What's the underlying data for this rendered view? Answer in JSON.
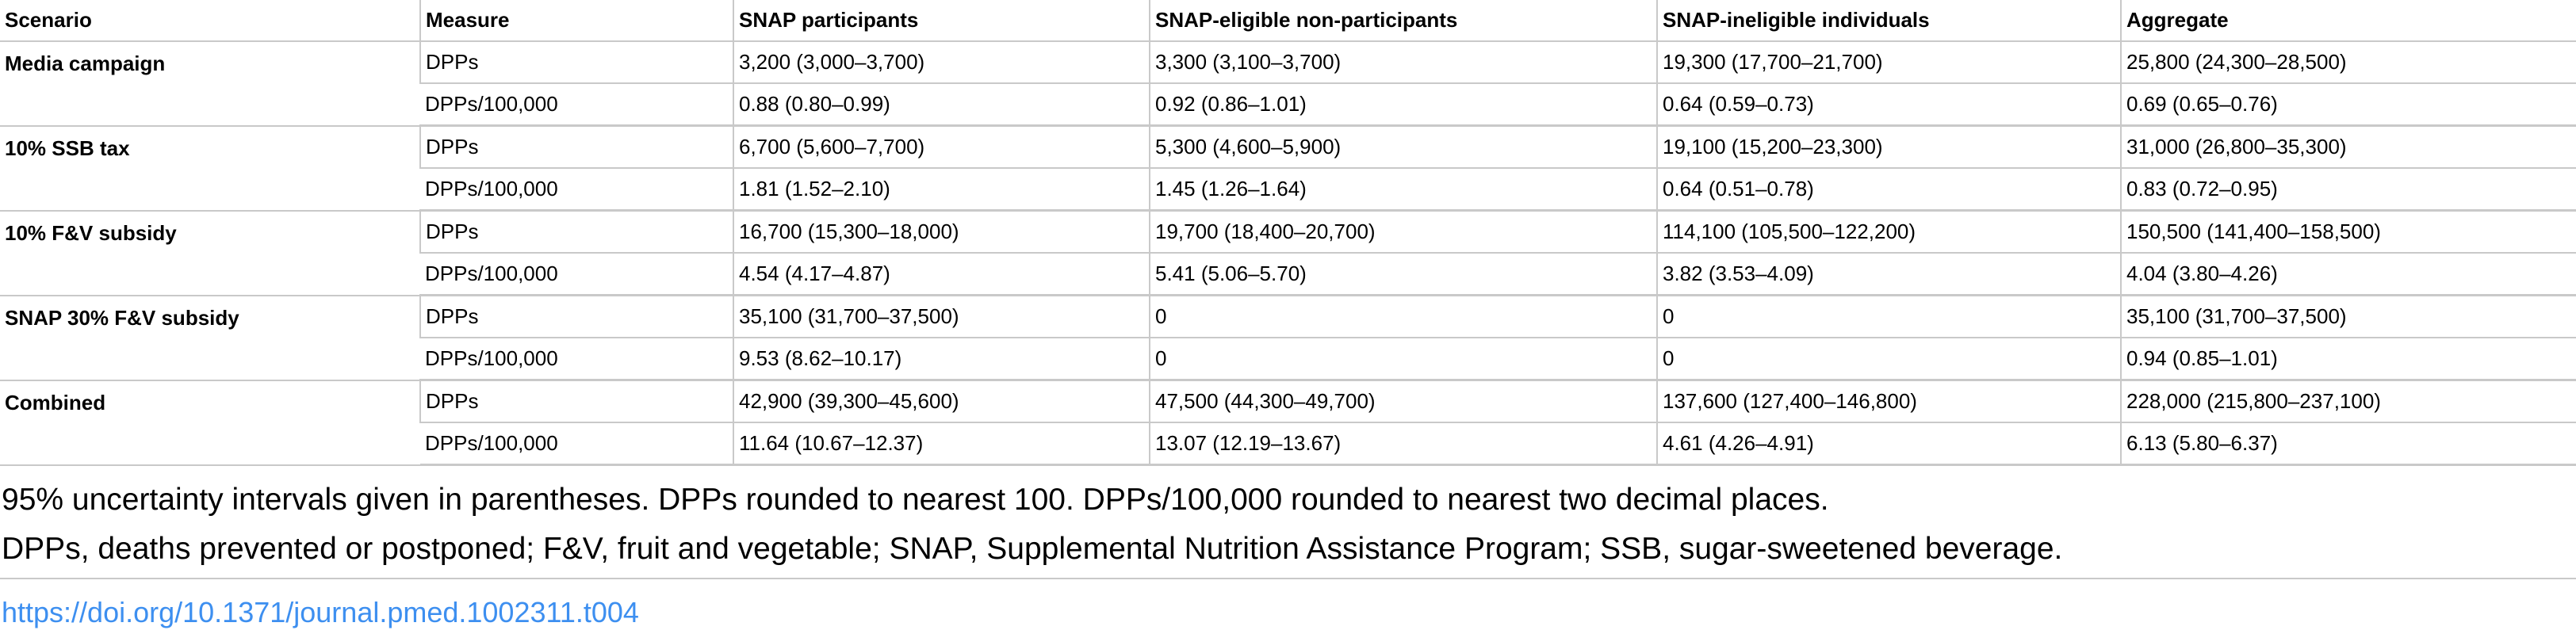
{
  "table": {
    "headers": [
      "Scenario",
      "Measure",
      "SNAP participants",
      "SNAP-eligible non-participants",
      "SNAP-ineligible individuals",
      "Aggregate"
    ],
    "groups": [
      {
        "scenario": "Media campaign",
        "rows": [
          [
            "DPPs",
            "3,200 (3,000–3,700)",
            "3,300 (3,100–3,700)",
            "19,300 (17,700–21,700)",
            "25,800 (24,300–28,500)"
          ],
          [
            "DPPs/100,000",
            "0.88 (0.80–0.99)",
            "0.92 (0.86–1.01)",
            "0.64 (0.59–0.73)",
            "0.69 (0.65–0.76)"
          ]
        ]
      },
      {
        "scenario": "10% SSB tax",
        "rows": [
          [
            "DPPs",
            "6,700 (5,600–7,700)",
            "5,300 (4,600–5,900)",
            "19,100 (15,200–23,300)",
            "31,000 (26,800–35,300)"
          ],
          [
            "DPPs/100,000",
            "1.81 (1.52–2.10)",
            "1.45 (1.26–1.64)",
            "0.64 (0.51–0.78)",
            "0.83 (0.72–0.95)"
          ]
        ]
      },
      {
        "scenario": "10% F&V subsidy",
        "rows": [
          [
            "DPPs",
            "16,700 (15,300–18,000)",
            "19,700 (18,400–20,700)",
            "114,100 (105,500–122,200)",
            "150,500 (141,400–158,500)"
          ],
          [
            "DPPs/100,000",
            "4.54 (4.17–4.87)",
            "5.41 (5.06–5.70)",
            "3.82 (3.53–4.09)",
            "4.04 (3.80–4.26)"
          ]
        ]
      },
      {
        "scenario": "SNAP 30% F&V subsidy",
        "rows": [
          [
            "DPPs",
            "35,100 (31,700–37,500)",
            "0",
            "0",
            "35,100 (31,700–37,500)"
          ],
          [
            "DPPs/100,000",
            "9.53 (8.62–10.17)",
            "0",
            "0",
            "0.94 (0.85–1.01)"
          ]
        ]
      },
      {
        "scenario": "Combined",
        "rows": [
          [
            "DPPs",
            "42,900 (39,300–45,600)",
            "47,500 (44,300–49,700)",
            "137,600 (127,400–146,800)",
            "228,000 (215,800–237,100)"
          ],
          [
            "DPPs/100,000",
            "11.64 (10.67–12.37)",
            "13.07 (12.19–13.67)",
            "4.61 (4.26–4.91)",
            "6.13 (5.80–6.37)"
          ]
        ]
      }
    ]
  },
  "footnotes": [
    "95% uncertainty intervals given in parentheses. DPPs rounded to nearest 100. DPPs/100,000 rounded to nearest two decimal places.",
    "DPPs, deaths prevented or postponed; F&V, fruit and vegetable; SNAP, Supplemental Nutrition Assistance Program; SSB, sugar-sweetened beverage."
  ],
  "doi": "https://doi.org/10.1371/journal.pmed.1002311.t004",
  "colors": {
    "link": "#3d8ff0",
    "rule": "#c9c9c9",
    "text": "#000000"
  }
}
